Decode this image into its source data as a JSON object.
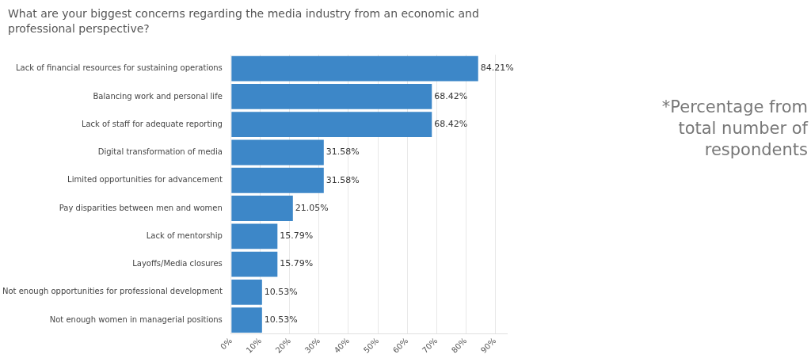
{
  "chart_data": {
    "type": "bar",
    "orientation": "horizontal",
    "title": "What are your biggest concerns regarding the media industry from an economic and professional perspective?",
    "categories": [
      "Lack of financial resources for sustaining operations",
      "Balancing work and personal life",
      "Lack of staff for adequate reporting",
      "Digital transformation of media",
      "Limited opportunities for advancement",
      "Pay disparities between men and women",
      "Lack of mentorship",
      "Layoffs/Media closures",
      "Not enough opportunities for professional development",
      "Not enough women in managerial positions"
    ],
    "values": [
      84.21,
      68.42,
      68.42,
      31.58,
      31.58,
      21.05,
      15.79,
      15.79,
      10.53,
      10.53
    ],
    "value_labels": [
      "84.21%",
      "68.42%",
      "68.42%",
      "31.58%",
      "31.58%",
      "21.05%",
      "15.79%",
      "15.79%",
      "10.53%",
      "10.53%"
    ],
    "color": "#3d87c8",
    "xlim": [
      0,
      94
    ],
    "xticks": [
      {
        "value": 0,
        "label": "0%"
      },
      {
        "value": 10,
        "label": "10%"
      },
      {
        "value": 20,
        "label": "20%"
      },
      {
        "value": 30,
        "label": "30%"
      },
      {
        "value": 40,
        "label": "40%"
      },
      {
        "value": 50,
        "label": "50%"
      },
      {
        "value": 60,
        "label": "60%"
      },
      {
        "value": 70,
        "label": "70%"
      },
      {
        "value": 80,
        "label": "80%"
      },
      {
        "value": 90,
        "label": "90%"
      }
    ],
    "grid": "x",
    "legend": false,
    "annotations": [
      "*Percentage from total number of respondents"
    ]
  }
}
